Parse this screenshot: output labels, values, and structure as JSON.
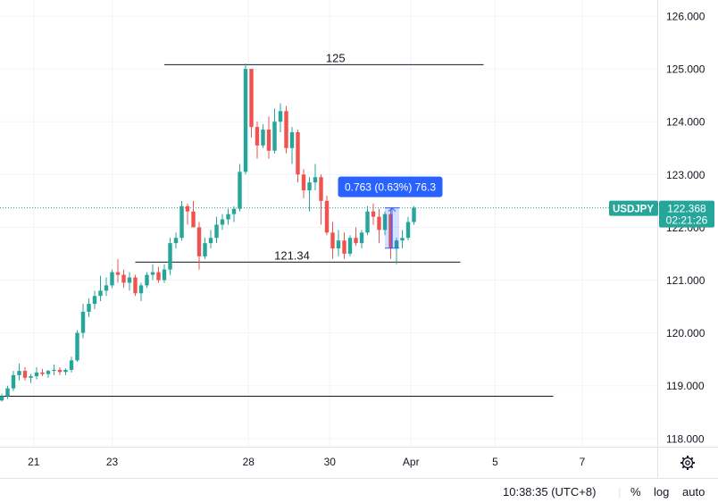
{
  "chart_data": {
    "type": "candlestick",
    "symbol": "USDJPY",
    "ylim": [
      117.8,
      126.3
    ],
    "price_ticks": [
      "118.000",
      "119.000",
      "120.000",
      "121.000",
      "122.000",
      "123.000",
      "124.000",
      "125.000",
      "126.000"
    ],
    "date_ticks": [
      {
        "label": "21",
        "index": 5.5
      },
      {
        "label": "23",
        "index": 19
      },
      {
        "label": "28",
        "index": 42.5
      },
      {
        "label": "30",
        "index": 56.5
      },
      {
        "label": "Apr",
        "index": 70.5
      },
      {
        "label": "5",
        "index": 85
      },
      {
        "label": "7",
        "index": 100
      }
    ],
    "candles": [
      [
        118.72,
        118.85,
        118.7,
        118.8
      ],
      [
        118.8,
        119.0,
        118.75,
        118.95
      ],
      [
        118.95,
        119.28,
        118.9,
        119.2
      ],
      [
        119.2,
        119.42,
        119.1,
        119.28
      ],
      [
        119.28,
        119.35,
        119.1,
        119.15
      ],
      [
        119.15,
        119.22,
        119.05,
        119.18
      ],
      [
        119.18,
        119.35,
        119.12,
        119.25
      ],
      [
        119.25,
        119.32,
        119.18,
        119.22
      ],
      [
        119.22,
        119.3,
        119.15,
        119.28
      ],
      [
        119.28,
        119.4,
        119.2,
        119.3
      ],
      [
        119.3,
        119.35,
        119.2,
        119.26
      ],
      [
        119.26,
        119.33,
        119.2,
        119.3
      ],
      [
        119.3,
        119.55,
        119.25,
        119.48
      ],
      [
        119.48,
        120.05,
        119.45,
        120.0
      ],
      [
        120.0,
        120.55,
        119.9,
        120.4
      ],
      [
        120.4,
        120.65,
        120.3,
        120.55
      ],
      [
        120.55,
        120.8,
        120.45,
        120.7
      ],
      [
        120.7,
        121.08,
        120.6,
        120.8
      ],
      [
        120.8,
        121.05,
        120.7,
        120.9
      ],
      [
        120.9,
        121.2,
        120.85,
        121.15
      ],
      [
        121.15,
        121.4,
        120.95,
        121.1
      ],
      [
        121.1,
        121.2,
        120.85,
        120.95
      ],
      [
        120.95,
        121.15,
        120.8,
        121.05
      ],
      [
        121.05,
        121.1,
        120.7,
        120.75
      ],
      [
        120.75,
        120.95,
        120.6,
        120.9
      ],
      [
        120.9,
        121.15,
        120.85,
        121.1
      ],
      [
        121.1,
        121.3,
        121.0,
        121.15
      ],
      [
        121.15,
        121.25,
        120.95,
        121.0
      ],
      [
        121.0,
        121.3,
        120.95,
        121.2
      ],
      [
        121.2,
        121.8,
        121.1,
        121.7
      ],
      [
        121.7,
        121.9,
        121.6,
        121.8
      ],
      [
        121.8,
        122.5,
        121.75,
        122.4
      ],
      [
        122.4,
        122.45,
        122.05,
        122.3
      ],
      [
        122.3,
        122.5,
        122.0,
        122.0
      ],
      [
        122.0,
        122.1,
        121.2,
        121.45
      ],
      [
        121.45,
        121.8,
        121.4,
        121.7
      ],
      [
        121.7,
        121.95,
        121.6,
        121.8
      ],
      [
        121.8,
        122.2,
        121.7,
        122.05
      ],
      [
        122.05,
        122.25,
        121.95,
        122.15
      ],
      [
        122.15,
        122.35,
        122.05,
        122.25
      ],
      [
        122.25,
        122.4,
        122.1,
        122.35
      ],
      [
        122.35,
        123.2,
        122.3,
        123.05
      ],
      [
        123.05,
        125.1,
        123.0,
        125.0
      ],
      [
        125.0,
        125.0,
        123.7,
        123.9
      ],
      [
        123.9,
        124.0,
        123.3,
        123.55
      ],
      [
        123.55,
        123.95,
        123.5,
        123.85
      ],
      [
        123.85,
        124.1,
        123.3,
        123.45
      ],
      [
        123.45,
        124.25,
        123.4,
        124.0
      ],
      [
        124.0,
        124.35,
        123.8,
        124.2
      ],
      [
        124.2,
        124.3,
        123.4,
        123.5
      ],
      [
        123.5,
        123.9,
        123.2,
        123.8
      ],
      [
        123.8,
        123.85,
        122.85,
        123.0
      ],
      [
        123.0,
        123.1,
        122.55,
        122.7
      ],
      [
        122.7,
        122.95,
        122.3,
        122.85
      ],
      [
        122.85,
        123.2,
        122.7,
        122.95
      ],
      [
        122.95,
        123.0,
        122.05,
        122.5
      ],
      [
        122.5,
        122.6,
        121.85,
        121.9
      ],
      [
        121.9,
        122.1,
        121.4,
        121.6
      ],
      [
        121.6,
        121.95,
        121.45,
        121.75
      ],
      [
        121.75,
        121.9,
        121.4,
        121.5
      ],
      [
        121.5,
        121.85,
        121.45,
        121.8
      ],
      [
        121.8,
        122.0,
        121.65,
        121.7
      ],
      [
        121.7,
        121.95,
        121.6,
        121.9
      ],
      [
        121.9,
        122.4,
        121.85,
        122.3
      ],
      [
        122.3,
        122.45,
        122.05,
        122.2
      ],
      [
        122.2,
        122.35,
        121.7,
        121.95
      ],
      [
        121.95,
        122.3,
        121.85,
        122.25
      ],
      [
        122.25,
        122.35,
        121.4,
        121.6
      ],
      [
        121.6,
        121.8,
        121.3,
        121.75
      ],
      [
        121.75,
        121.95,
        121.6,
        121.8
      ],
      [
        121.8,
        122.2,
        121.75,
        122.1
      ],
      [
        122.1,
        122.4,
        122.05,
        122.37
      ]
    ],
    "horizontal_lines": [
      {
        "price": 125.08,
        "label": "125",
        "start": 28,
        "end": 83,
        "label_at": 57.5
      },
      {
        "price": 121.34,
        "label": "121.34",
        "start": 23,
        "end": 79,
        "label_at": 50
      },
      {
        "price": 118.8,
        "label": "",
        "start": -2,
        "end": 95,
        "label_at": null
      }
    ],
    "last_price": 122.368,
    "last_price_label": "122.368",
    "countdown": "02:21:26",
    "measure": {
      "label": "0.763 (0.63%) 76.3",
      "from": 121.605,
      "to": 122.368,
      "index": 66
    }
  },
  "colors": {
    "up": "#26a69a",
    "down": "#ef5350",
    "measure": "#2962ff",
    "grid": "#f0f3fa"
  },
  "bottom_bar": {
    "time": "10:38:35 (UTC+8)",
    "percent": "%",
    "log": "log",
    "auto": "auto"
  },
  "settings_icon": "gear-icon"
}
